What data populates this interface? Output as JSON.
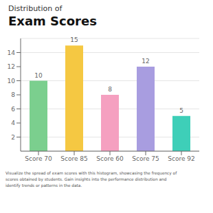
{
  "chart_data": {
    "type": "bar",
    "title": "Exam Scores",
    "subtitle": "Distribution of",
    "categories": [
      "Score 70",
      "Score 85",
      "Score 60",
      "Score 75",
      "Score 92"
    ],
    "values": [
      10,
      15,
      8,
      12,
      5
    ],
    "colors": [
      "#7bcf8e",
      "#f5c842",
      "#f5a0c0",
      "#a89de0",
      "#3ecfb8"
    ],
    "ylim": [
      0,
      16
    ],
    "yticks": [
      2,
      4,
      6,
      8,
      10,
      12,
      14
    ],
    "grid": true,
    "data_labels": true,
    "annotations": [
      "Visualize the spread of exam scores with this histogram, showcasing the frequency of\nscores obtained by students. Gain insights into the performance distribution and\nidentify trends or patterns in the data."
    ]
  }
}
